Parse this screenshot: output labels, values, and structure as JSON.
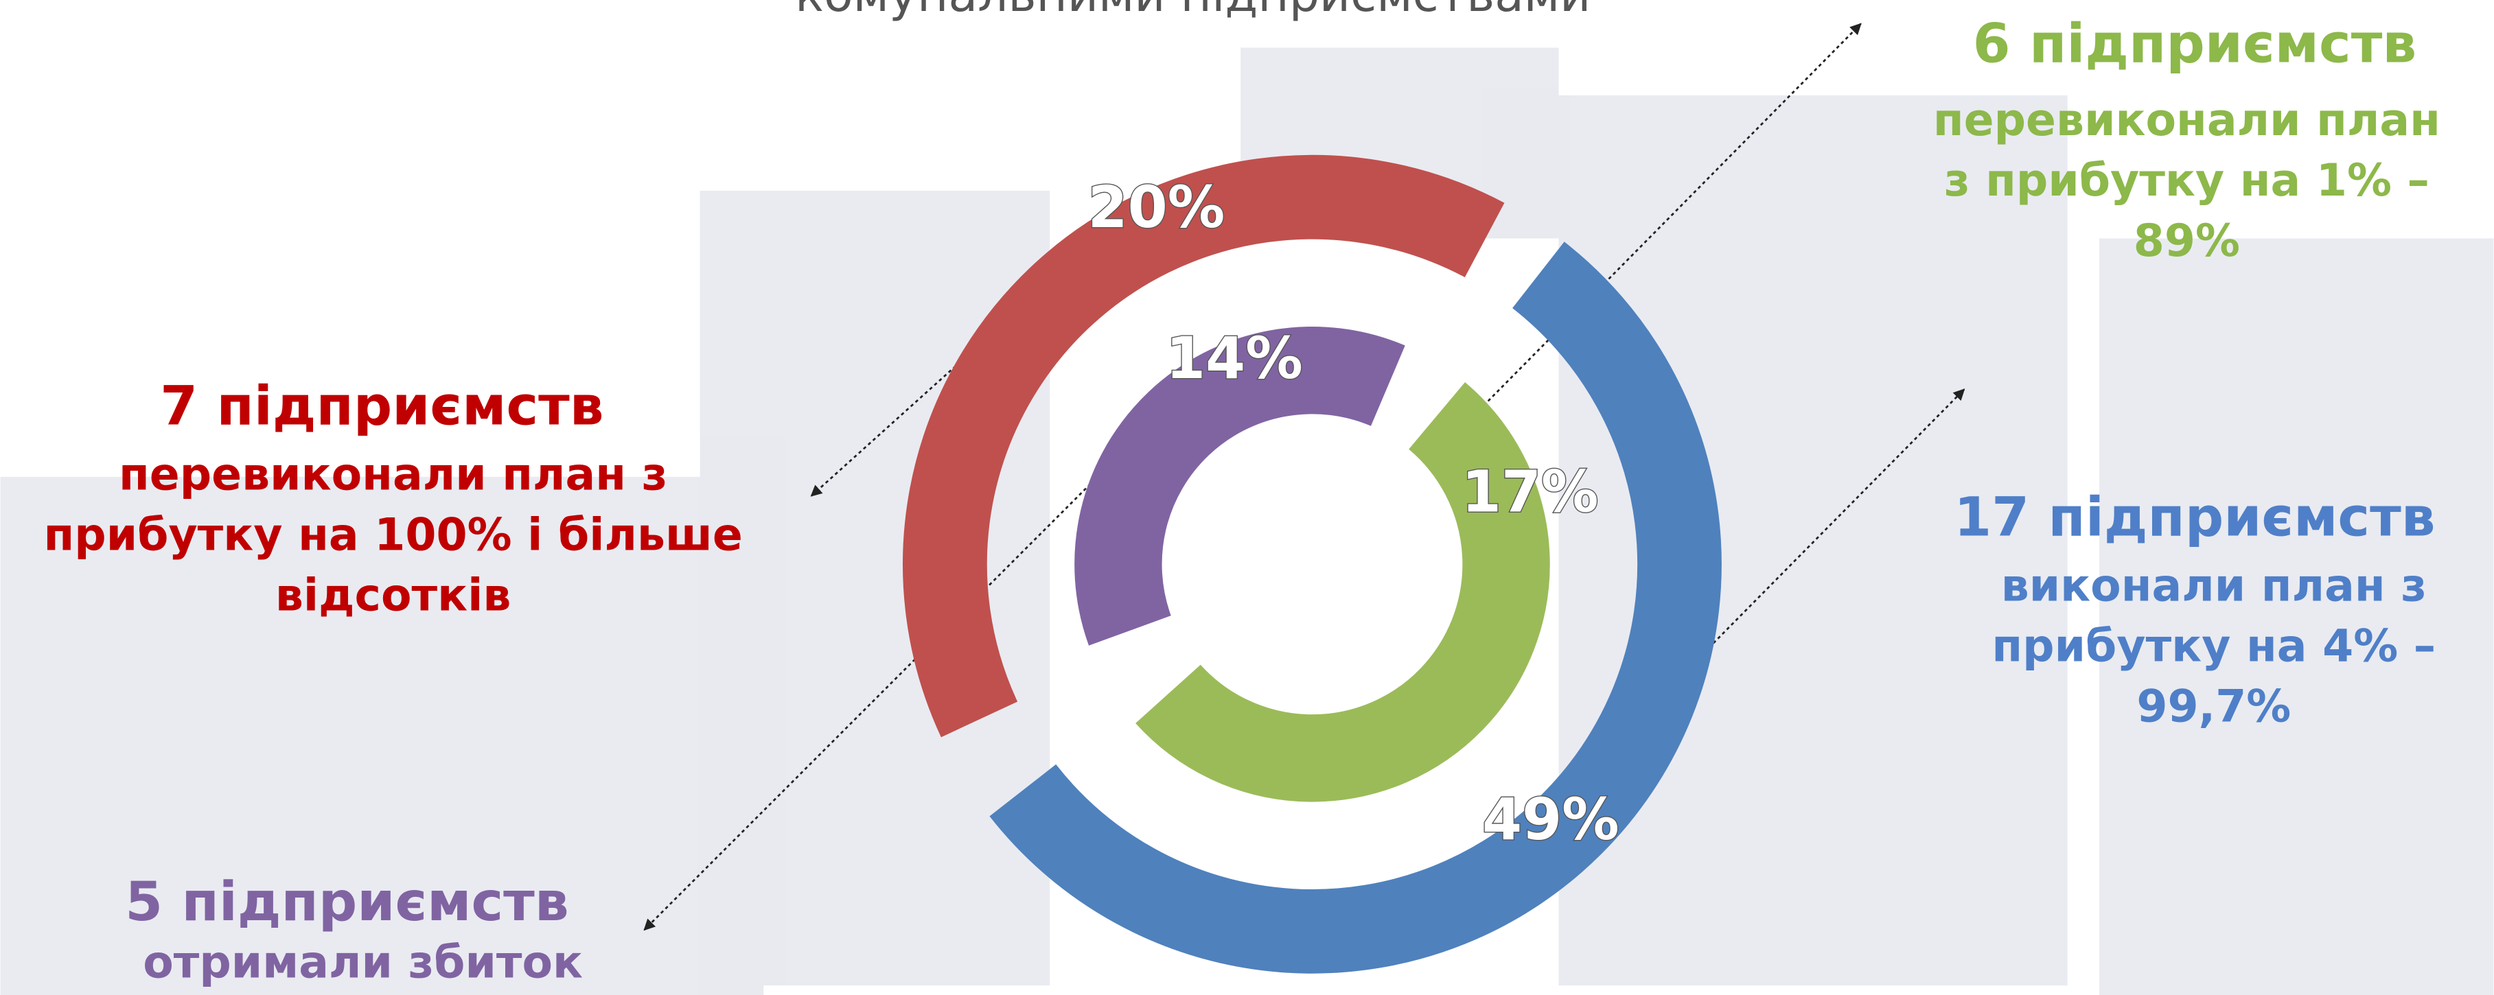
{
  "chart_data": {
    "type": "radial_bar",
    "subtitle": "комунальними підприємствами",
    "values": [
      20,
      14,
      17,
      49
    ],
    "value_labels": [
      "20%",
      "14%",
      "17%",
      "49%"
    ],
    "colors": [
      "#c0504d",
      "#8064a2",
      "#9bbb59",
      "#4f81bd"
    ],
    "annotations": [
      {
        "title": "7 підприємств",
        "lines": [
          "перевиконали план з",
          "прибутку на 100% і більше",
          "відсотків"
        ],
        "color": "#c00000"
      },
      {
        "title": "5 підприємств",
        "lines": [
          "отримали збиток"
        ],
        "color": "#8064a2"
      },
      {
        "title": "6 підприємств",
        "lines": [
          "перевиконали план",
          "з прибутку на 1% –",
          "89%"
        ],
        "color": "#8db84a"
      },
      {
        "title": "17 підприємств",
        "lines": [
          "виконали план з",
          "прибутку на 4% –",
          "99,7%"
        ],
        "color": "#4f7fc8"
      }
    ]
  }
}
